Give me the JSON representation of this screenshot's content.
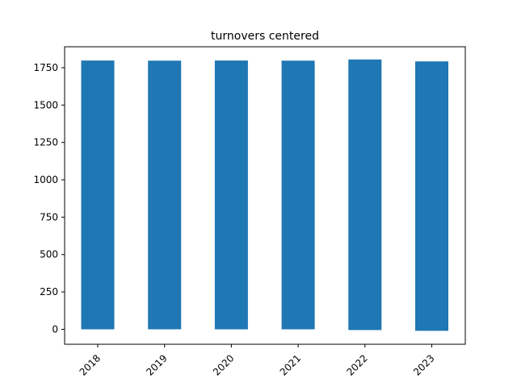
{
  "chart_data": {
    "type": "bar",
    "title": "turnovers centered",
    "xlabel": "",
    "ylabel": "",
    "categories": [
      "2018",
      "2019",
      "2020",
      "2021",
      "2022",
      "2023"
    ],
    "values": [
      1798,
      1797,
      1798,
      1797,
      1805,
      1792
    ],
    "baselines": [
      0,
      0,
      0,
      0,
      -5,
      -10
    ],
    "ylim": [
      -100,
      1890
    ],
    "yticks": [
      0,
      250,
      500,
      750,
      1000,
      1250,
      1500,
      1750
    ],
    "ytick_labels": [
      "0",
      "250",
      "500",
      "750",
      "1000",
      "1250",
      "1500",
      "1750"
    ],
    "bar_color": "#1f77b4",
    "grid": false,
    "legend": "none"
  }
}
